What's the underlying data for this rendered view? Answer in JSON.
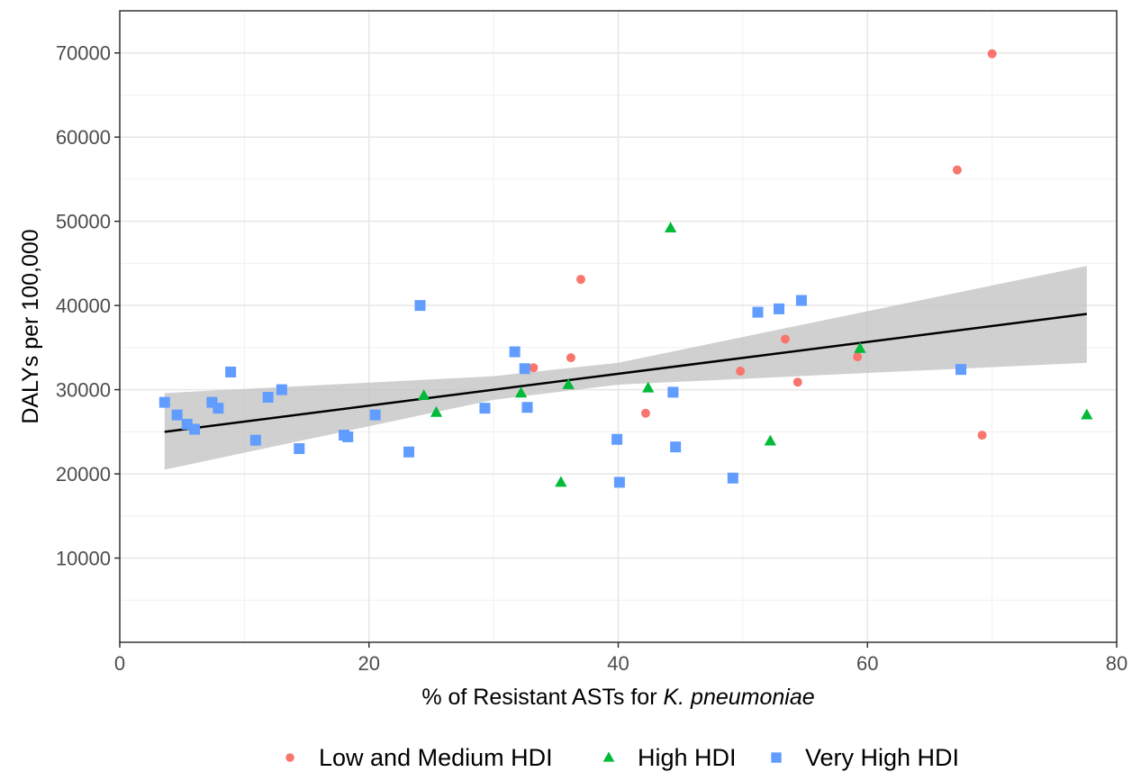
{
  "chart_data": {
    "type": "scatter",
    "xlabel": "% of Resistant ASTs  for K. pneumoniae",
    "xlabel_parts": {
      "prefix": "% of Resistant ASTs  for ",
      "italic": "K. pneumoniae"
    },
    "ylabel": "DALYs per 100,000",
    "xlim": [
      0,
      80
    ],
    "ylim": [
      0,
      75000
    ],
    "x_ticks": [
      0,
      20,
      40,
      60,
      80
    ],
    "y_ticks": [
      10000,
      20000,
      30000,
      40000,
      50000,
      60000,
      70000
    ],
    "grid": true,
    "legend_position": "bottom",
    "series": [
      {
        "name": "Low and Medium HDI",
        "marker": "circle",
        "color": "#F8766D",
        "points": [
          [
            33.2,
            32600
          ],
          [
            36.2,
            33800
          ],
          [
            37.0,
            43100
          ],
          [
            42.2,
            27200
          ],
          [
            49.8,
            32200
          ],
          [
            53.4,
            36000
          ],
          [
            54.4,
            30900
          ],
          [
            59.2,
            33900
          ],
          [
            67.2,
            56100
          ],
          [
            69.2,
            24600
          ],
          [
            70.0,
            69900
          ]
        ]
      },
      {
        "name": "High HDI",
        "marker": "triangle",
        "color": "#00BA38",
        "points": [
          [
            24.4,
            29300
          ],
          [
            25.4,
            27300
          ],
          [
            32.2,
            29600
          ],
          [
            35.4,
            19000
          ],
          [
            36.0,
            30600
          ],
          [
            42.4,
            30200
          ],
          [
            44.2,
            49200
          ],
          [
            52.2,
            23900
          ],
          [
            59.4,
            34900
          ],
          [
            77.6,
            27000
          ]
        ]
      },
      {
        "name": "Very High HDI",
        "marker": "square",
        "color": "#619CFF",
        "points": [
          [
            3.6,
            28500
          ],
          [
            4.6,
            27000
          ],
          [
            5.4,
            25900
          ],
          [
            6.0,
            25300
          ],
          [
            7.4,
            28500
          ],
          [
            7.9,
            27800
          ],
          [
            8.9,
            32100
          ],
          [
            10.9,
            24000
          ],
          [
            11.9,
            29100
          ],
          [
            13.0,
            30000
          ],
          [
            14.4,
            23000
          ],
          [
            18.0,
            24600
          ],
          [
            18.3,
            24400
          ],
          [
            20.5,
            27000
          ],
          [
            23.2,
            22600
          ],
          [
            24.1,
            40000
          ],
          [
            29.3,
            27800
          ],
          [
            31.7,
            34500
          ],
          [
            32.5,
            32500
          ],
          [
            32.7,
            27900
          ],
          [
            39.9,
            24100
          ],
          [
            40.1,
            19000
          ],
          [
            44.4,
            29700
          ],
          [
            44.6,
            23200
          ],
          [
            49.2,
            19500
          ],
          [
            51.2,
            39200
          ],
          [
            52.9,
            39600
          ],
          [
            54.7,
            40600
          ],
          [
            67.5,
            32400
          ]
        ]
      }
    ],
    "regression": {
      "line": [
        [
          3.6,
          25000
        ],
        [
          77.6,
          39000
        ]
      ],
      "ci_low": [
        [
          3.6,
          20500
        ],
        [
          30,
          28800
        ],
        [
          40,
          30600
        ],
        [
          77.6,
          33200
        ]
      ],
      "ci_high": [
        [
          3.6,
          29600
        ],
        [
          30,
          31600
        ],
        [
          40,
          33200
        ],
        [
          77.6,
          44700
        ]
      ],
      "line_color": "#000000",
      "band_color": "#C0C0C0"
    }
  }
}
